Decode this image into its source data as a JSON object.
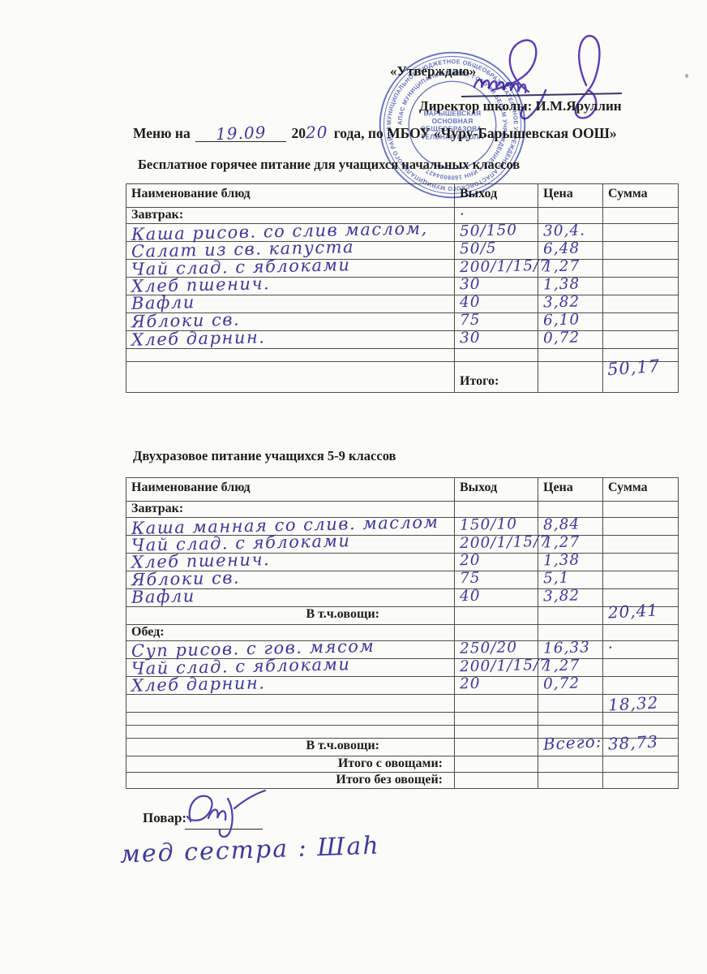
{
  "approval": {
    "approve_label": "«Утверждаю»",
    "director_label": "Директор школы: И.М.Яруллин"
  },
  "menu_line": {
    "prefix": "Меню на",
    "date_handwritten": "19.09",
    "year_printed": "20",
    "year_handwritten": "20",
    "suffix": "года, по МБОУ «Чуру-Барышевская ООШ»"
  },
  "stamp": {
    "ring_outer": "МУНИЦИПАЛЬНОЕ БЮДЖЕТНОЕ ОБЩЕОБРАЗОВАТЕЛЬНОЕ УЧРЕЖДЕНИЕ АПАСТОВСКОГО МУНИЦИПАЛЬНОГО РАЙОНА РЕСПУБЛИКИ ТАТАРСТАН",
    "ring_inner": "АПАС МУНИЦИПАЛЬ БЮДЖЕТ ГОМУМИ БЕЛЕМ УЧРЕЖДЕНИЕСЕ • ИНН 1609004427 •",
    "center_lines": [
      "БАРЫШЕВСКАЯ",
      "ОСНОВНАЯ",
      "ОБЩЕОБРАЗОВА-",
      "ТЕЛЬНАЯ ШКОЛА"
    ]
  },
  "tables": [
    {
      "title": "Бесплатное  горячее питание для учащихся начальных классов",
      "columns": [
        "Наименование блюд",
        "Выход",
        "Цена",
        "Сумма"
      ],
      "rows": [
        {
          "type": "section",
          "cells": [
            "Завтрак:",
            "·",
            "",
            ""
          ],
          "hw": [
            false,
            true,
            false,
            false
          ]
        },
        {
          "type": "dish",
          "cells": [
            "Каша рисов. со слив маслом,",
            "50/150",
            "30,4.",
            ""
          ],
          "hw": [
            true,
            true,
            true,
            false
          ]
        },
        {
          "type": "dish",
          "cells": [
            "Салат из св. капуста",
            "50/5",
            "6,48",
            ""
          ],
          "hw": [
            true,
            true,
            true,
            false
          ]
        },
        {
          "type": "dish",
          "cells": [
            "Чай слад. с яблоками",
            "200/1/15/7",
            "1,27",
            ""
          ],
          "hw": [
            true,
            true,
            true,
            false
          ]
        },
        {
          "type": "dish",
          "cells": [
            "Хлеб пшенич.",
            "30",
            "1,38",
            ""
          ],
          "hw": [
            true,
            true,
            true,
            false
          ]
        },
        {
          "type": "dish",
          "cells": [
            "Вафли",
            "40",
            "3,82",
            ""
          ],
          "hw": [
            true,
            true,
            true,
            false
          ]
        },
        {
          "type": "dish",
          "cells": [
            "Яблоки св.",
            "75",
            "6,10",
            ""
          ],
          "hw": [
            true,
            true,
            true,
            false
          ]
        },
        {
          "type": "dish",
          "cells": [
            "Хлеб дарнин.",
            "30",
            "0,72",
            ""
          ],
          "hw": [
            true,
            true,
            true,
            false
          ]
        },
        {
          "type": "empty",
          "cells": [
            "",
            "",
            "",
            ""
          ],
          "hw": [
            false,
            false,
            false,
            false
          ]
        },
        {
          "type": "total",
          "cells": [
            "",
            "Итого:",
            "",
            "50,17"
          ],
          "hw": [
            false,
            false,
            false,
            true
          ]
        }
      ]
    },
    {
      "title": "Двухразовое питание учащихся 5-9 классов",
      "columns": [
        "Наименование блюд",
        "Выход",
        "Цена",
        "Сумма"
      ],
      "rows": [
        {
          "type": "section",
          "cells": [
            "Завтрак:",
            "",
            "",
            ""
          ],
          "hw": [
            false,
            false,
            false,
            false
          ]
        },
        {
          "type": "dish",
          "cells": [
            "Каша манная со слив. маслом",
            "150/10",
            "8,84",
            ""
          ],
          "hw": [
            true,
            true,
            true,
            false
          ]
        },
        {
          "type": "dish",
          "cells": [
            "Чай слад. с яблоками",
            "200/1/15/7",
            "1,27",
            ""
          ],
          "hw": [
            true,
            true,
            true,
            false
          ]
        },
        {
          "type": "dish",
          "cells": [
            "Хлеб пшенич.",
            "20",
            "1,38",
            ""
          ],
          "hw": [
            true,
            true,
            true,
            false
          ]
        },
        {
          "type": "dish",
          "cells": [
            "Яблоки св.",
            "75",
            "5,1",
            ""
          ],
          "hw": [
            true,
            true,
            true,
            false
          ]
        },
        {
          "type": "dish",
          "cells": [
            "Вафли",
            "40",
            "3,82",
            ""
          ],
          "hw": [
            true,
            true,
            true,
            false
          ]
        },
        {
          "type": "label-mid",
          "cells": [
            "В т.ч.овощи:",
            "",
            "",
            "20,41"
          ],
          "hw": [
            false,
            false,
            false,
            true
          ]
        },
        {
          "type": "section",
          "cells": [
            "Обед:",
            "",
            "",
            ""
          ],
          "hw": [
            false,
            false,
            false,
            false
          ]
        },
        {
          "type": "dish",
          "cells": [
            "Суп рисов. с гов. мясом",
            "250/20",
            "16,33",
            "·"
          ],
          "hw": [
            true,
            true,
            true,
            true
          ]
        },
        {
          "type": "dish",
          "cells": [
            "Чай слад. с яблоками",
            "200/1/15/7",
            "1,27",
            ""
          ],
          "hw": [
            true,
            true,
            true,
            false
          ]
        },
        {
          "type": "dish",
          "cells": [
            "Хлеб дарнин.",
            "20",
            "0,72",
            ""
          ],
          "hw": [
            true,
            true,
            true,
            false
          ]
        },
        {
          "type": "sum-only",
          "cells": [
            "",
            "",
            "",
            "18,32"
          ],
          "hw": [
            false,
            false,
            false,
            true
          ]
        },
        {
          "type": "empty",
          "cells": [
            "",
            "",
            "",
            ""
          ],
          "hw": [
            false,
            false,
            false,
            false
          ]
        },
        {
          "type": "empty",
          "cells": [
            "",
            "",
            "",
            ""
          ],
          "hw": [
            false,
            false,
            false,
            false
          ]
        },
        {
          "type": "label-mid",
          "cells": [
            "В т.ч.овощи:",
            "",
            "Всего:",
            "38,73"
          ],
          "hw": [
            false,
            false,
            true,
            true
          ]
        },
        {
          "type": "label-right",
          "cells": [
            "Итого с овощами:",
            "",
            "",
            ""
          ],
          "hw": [
            false,
            false,
            false,
            false
          ]
        },
        {
          "type": "label-right",
          "cells": [
            "Итого без овощей:",
            "",
            "",
            ""
          ],
          "hw": [
            false,
            false,
            false,
            false
          ]
        }
      ]
    }
  ],
  "footer": {
    "cook_label": "Повар:",
    "nurse_note_handwritten": "мед сестра :  Шаһ"
  },
  "colors": {
    "ink": "#3e3a99",
    "sig": "#5a3fb0",
    "stamp": "#4756b8",
    "print": "#1e1d1a"
  }
}
